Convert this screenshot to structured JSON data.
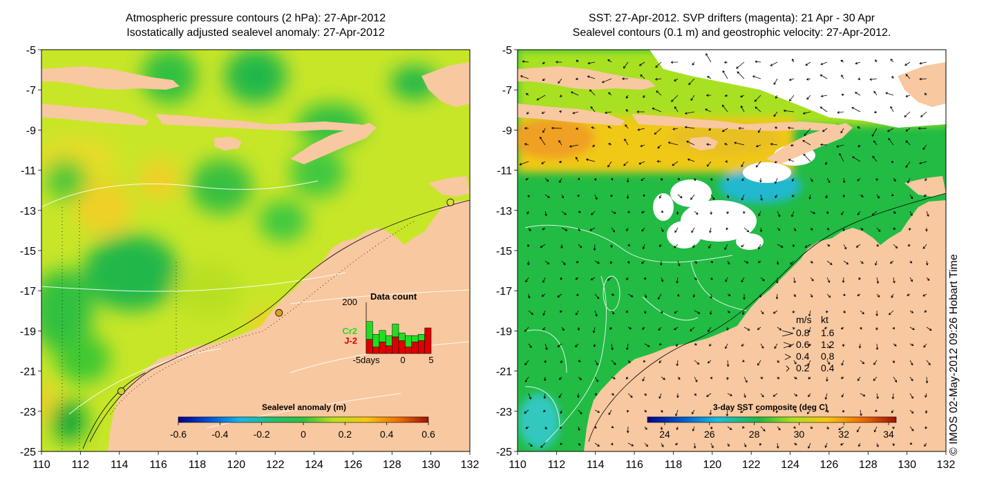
{
  "left_panel": {
    "title_line1": "Atmospheric pressure contours (2 hPa): 27-Apr-2012",
    "title_line2": "Isostatically adjusted sealevel anomaly: 27-Apr-2012",
    "colorbar": {
      "label": "Sealevel anomaly (m)",
      "ticks": [
        "-0.6",
        "-0.4",
        "-0.2",
        "0",
        "0.2",
        "0.4",
        "0.6"
      ]
    },
    "inset": {
      "title": "Data count",
      "y_tick": "200",
      "x_ticks": [
        "-5days",
        "0",
        "5"
      ],
      "series": [
        {
          "name": "Cr2",
          "color": "#22dd22",
          "values": [
            70,
            50,
            45,
            40,
            50,
            30,
            45,
            25,
            25,
            0
          ]
        },
        {
          "name": "J-2",
          "color": "#dd0000",
          "values": [
            55,
            25,
            45,
            30,
            65,
            50,
            25,
            45,
            50,
            100
          ]
        }
      ]
    },
    "stations": [
      {
        "lon": 131.0,
        "lat": -12.6,
        "color": "#d8e040"
      },
      {
        "lon": 122.2,
        "lat": -18.1,
        "color": "#e0a020"
      },
      {
        "lon": 114.1,
        "lat": -22.0,
        "color": "#c8d038"
      }
    ]
  },
  "right_panel": {
    "title_line1": "SST: 27-Apr-2012. SVP drifters (magenta): 21 Apr - 30 Apr",
    "title_line2": "Sealevel contours (0.1 m) and geostrophic velocity: 27-Apr-2012.",
    "colorbar": {
      "label": "3-day SST composite (deg C)",
      "ticks": [
        "24",
        "26",
        "28",
        "30",
        "32",
        "34"
      ]
    },
    "velocity_legend": {
      "header_ms": "m/s",
      "header_kt": "kt",
      "rows": [
        {
          "ms": "0.8",
          "kt": "1.6"
        },
        {
          "ms": "0.6",
          "kt": "1.2"
        },
        {
          "ms": "0.4",
          "kt": "0.8"
        },
        {
          "ms": "0.2",
          "kt": "0.4"
        }
      ]
    }
  },
  "axes": {
    "x_ticks": [
      "110",
      "112",
      "114",
      "116",
      "118",
      "120",
      "122",
      "124",
      "126",
      "128",
      "130",
      "132"
    ],
    "y_ticks": [
      "-5",
      "-7",
      "-9",
      "-11",
      "-13",
      "-15",
      "-17",
      "-19",
      "-21",
      "-23",
      "-25"
    ],
    "lon_range": [
      110,
      132
    ],
    "lat_range": [
      -25,
      -5
    ]
  },
  "copyright": "© IMOS 02-May-2012 09:26 Hobart Time",
  "colors": {
    "land": "#f8c8a0",
    "sea_anomaly_base": "#c8e628",
    "sst_base": "#22bb44",
    "cloud": "#ffffff"
  }
}
